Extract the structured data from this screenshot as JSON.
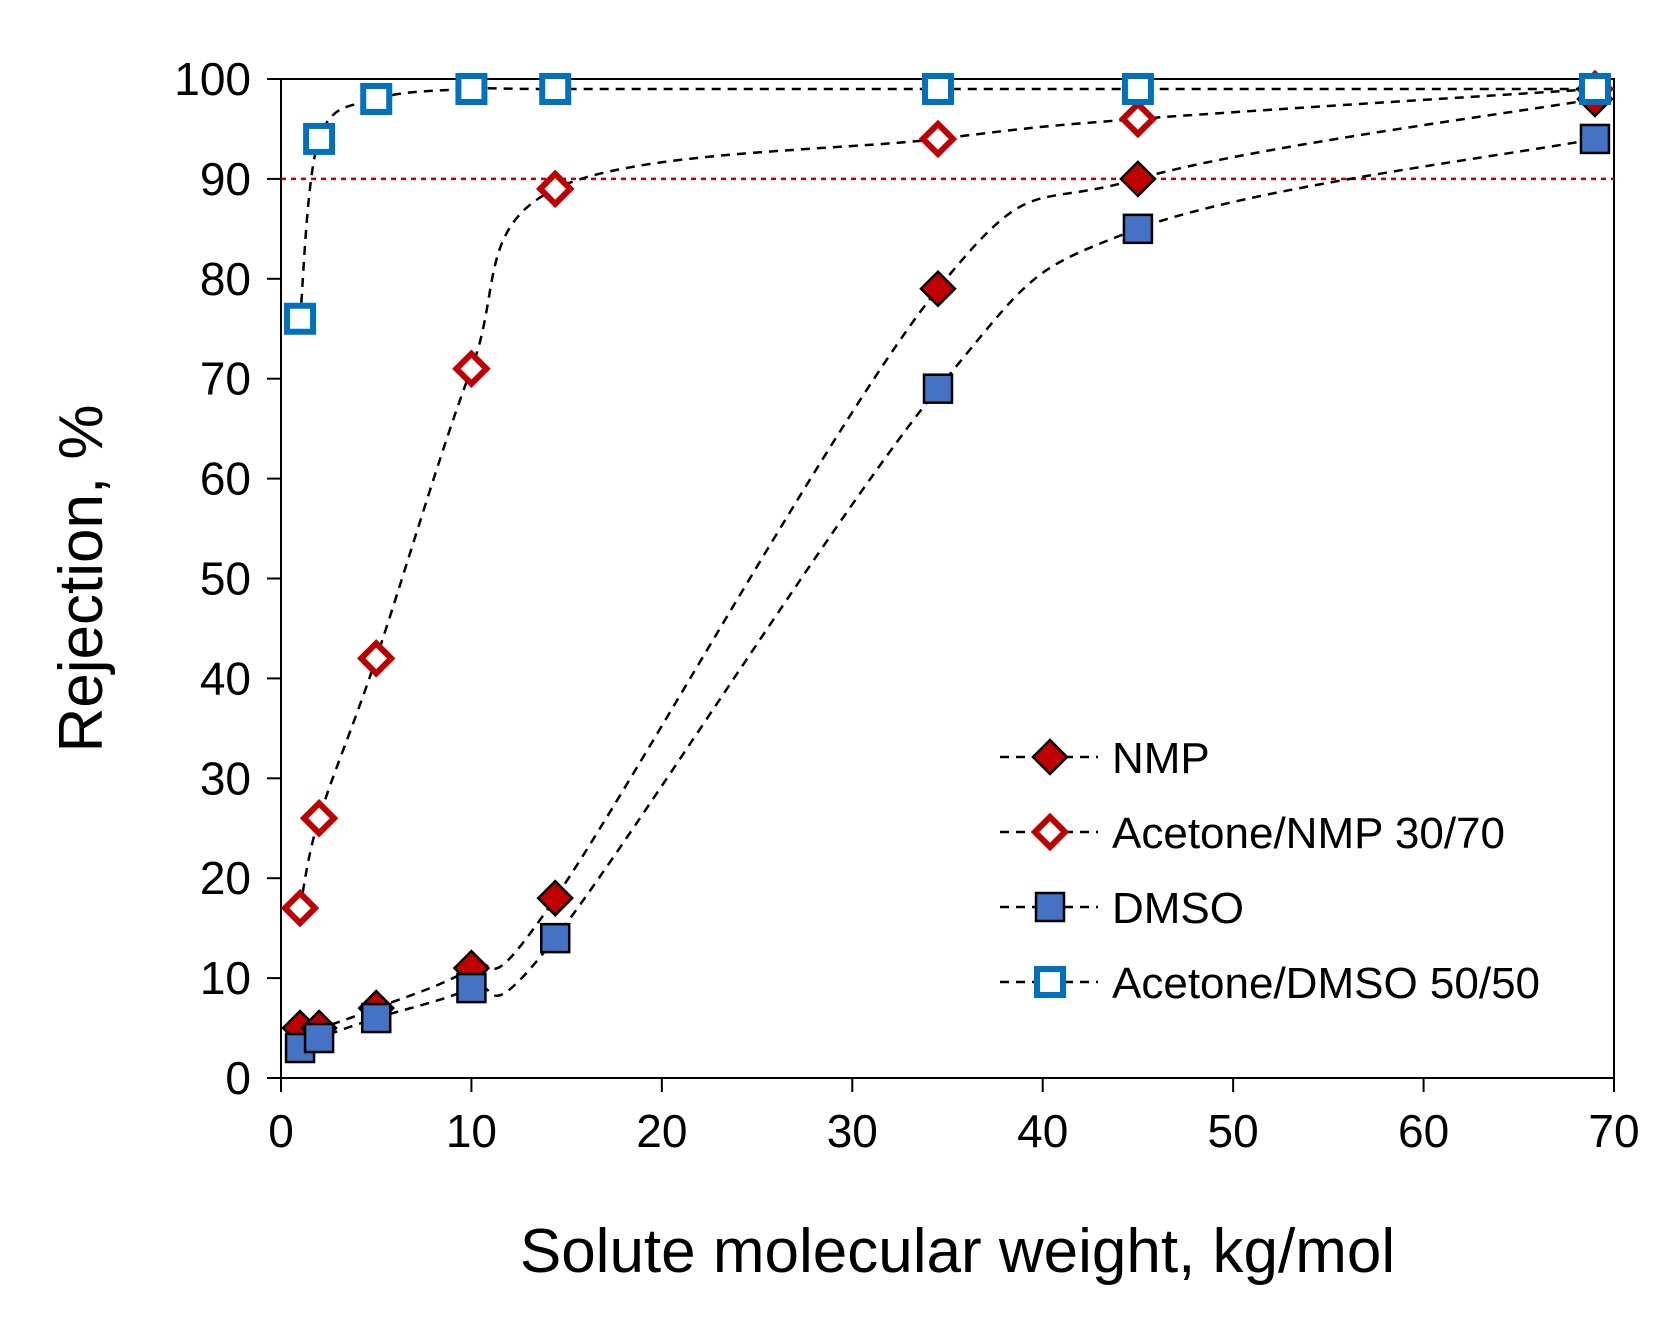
{
  "chart_data": {
    "type": "scatter",
    "title": "",
    "xlabel": "Solute molecular weight, kg/mol",
    "ylabel": "Rejection, %",
    "xlim": [
      0,
      70
    ],
    "ylim": [
      0,
      100
    ],
    "xticks": [
      "0",
      "10",
      "20",
      "30",
      "40",
      "50",
      "60",
      "70"
    ],
    "yticks": [
      "0",
      "10",
      "20",
      "30",
      "40",
      "50",
      "60",
      "70",
      "80",
      "90",
      "100"
    ],
    "grid": false,
    "legend_position": "bottom-right",
    "reference_line": {
      "y": 90,
      "color": "#c00000",
      "style": "dotted"
    },
    "series": [
      {
        "name": "NMP",
        "marker": "diamond-filled",
        "fill": "#c00000",
        "stroke": "#000000",
        "line_style": "dashed",
        "x": [
          1,
          2,
          5,
          10,
          14.4,
          34.5,
          45,
          69
        ],
        "y": [
          5,
          5,
          7,
          11,
          18,
          79,
          90,
          98
        ]
      },
      {
        "name": "Acetone/NMP 30/70",
        "marker": "diamond-open",
        "fill": "#ffffff",
        "stroke": "#c00000",
        "line_style": "dashed",
        "x": [
          1,
          2,
          5,
          10,
          14.4,
          34.5,
          45,
          69
        ],
        "y": [
          17,
          26,
          42,
          71,
          89,
          94,
          96,
          99
        ]
      },
      {
        "name": "DMSO",
        "marker": "square-filled",
        "fill": "#4472c4",
        "stroke": "#000000",
        "line_style": "dashed",
        "x": [
          1,
          2,
          5,
          10,
          14.4,
          34.5,
          45,
          69
        ],
        "y": [
          3,
          4,
          6,
          9,
          14,
          69,
          85,
          94
        ]
      },
      {
        "name": "Acetone/DMSO 50/50",
        "marker": "square-open",
        "fill": "#ffffff",
        "stroke": "#0070c0",
        "line_style": "dashed",
        "x": [
          1,
          2,
          5,
          10,
          14.4,
          34.5,
          45,
          69
        ],
        "y": [
          76,
          94,
          98,
          99,
          99,
          99,
          99,
          99
        ]
      }
    ]
  }
}
